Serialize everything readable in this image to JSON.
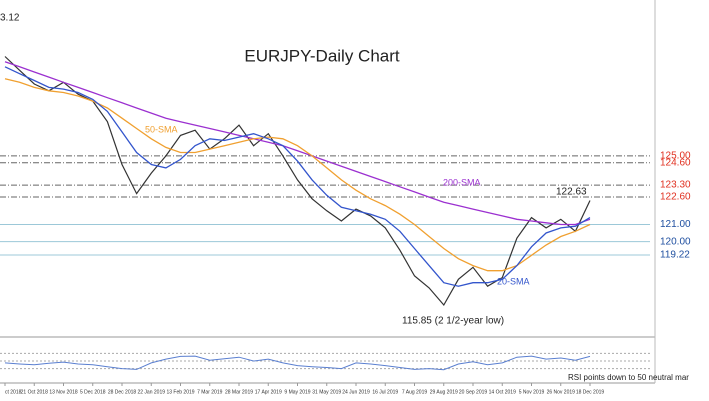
{
  "chart_data": {
    "type": "line",
    "title": "EURJPY-Daily Chart",
    "ylim": [
      114.55,
      134.1
    ],
    "categories": [
      "ct 2018",
      null,
      "21 Oct 2018",
      null,
      "13 Nov 2018",
      null,
      "5 Dec 2018",
      null,
      "28 Dec 2018",
      null,
      "22 Jan 2019",
      null,
      "13 Feb 2019",
      null,
      "7 Mar 2019",
      null,
      "28 Mar 2019",
      null,
      "17 Apr 2019",
      null,
      "9 May 2019",
      null,
      "31 May 2019",
      null,
      "24 Jun 2019",
      null,
      "16 Jul 2019",
      null,
      "7 Aug 2019",
      null,
      "29 Aug 2019",
      null,
      "20 Sep 2019",
      null,
      "14 Oct 2019",
      null,
      "5 Nov 2019",
      null,
      "26 Nov 2019",
      null,
      "18 Dec 2019"
    ],
    "series": [
      {
        "color": "#333333",
        "values": [
          130.8,
          130.0,
          129.2,
          128.8,
          129.3,
          128.6,
          128.2,
          127.0,
          124.5,
          122.8,
          124.0,
          125.0,
          126.2,
          126.5,
          125.4,
          126.0,
          126.8,
          125.6,
          126.3,
          125.0,
          123.6,
          122.5,
          121.8,
          121.2,
          121.9,
          121.5,
          120.8,
          119.5,
          118.0,
          117.3,
          116.3,
          117.8,
          118.5,
          117.4,
          117.9,
          120.2,
          121.4,
          120.8,
          121.3,
          120.6,
          122.4
        ]
      },
      {
        "name": "200-SMA",
        "color": "#9b30d0",
        "values": [
          130.5,
          130.2,
          129.9,
          129.6,
          129.3,
          129.0,
          128.7,
          128.4,
          128.1,
          127.8,
          127.5,
          127.2,
          127.0,
          126.8,
          126.6,
          126.4,
          126.2,
          126.0,
          125.8,
          125.6,
          125.3,
          125.0,
          124.7,
          124.4,
          124.1,
          123.8,
          123.5,
          123.2,
          122.9,
          122.6,
          122.3,
          122.1,
          121.9,
          121.7,
          121.5,
          121.3,
          121.2,
          121.1,
          121.0,
          121.0,
          121.3
        ]
      },
      {
        "name": "50-SMA",
        "color": "#f0a030",
        "values": [
          129.5,
          129.3,
          129.0,
          128.8,
          128.7,
          128.5,
          128.2,
          127.8,
          127.2,
          126.6,
          126.0,
          125.5,
          125.2,
          125.2,
          125.4,
          125.6,
          125.8,
          126.0,
          126.1,
          126.0,
          125.6,
          125.0,
          124.3,
          123.6,
          123.0,
          122.5,
          122.1,
          121.6,
          121.0,
          120.3,
          119.6,
          119.0,
          118.6,
          118.3,
          118.3,
          118.6,
          119.2,
          119.8,
          120.3,
          120.6,
          121.0
        ]
      },
      {
        "name": "20-SMA",
        "color": "#3355cc",
        "values": [
          130.2,
          129.8,
          129.4,
          129.0,
          128.9,
          128.7,
          128.3,
          127.6,
          126.4,
          125.2,
          124.5,
          124.3,
          124.8,
          125.6,
          126.0,
          125.9,
          126.1,
          126.3,
          126.0,
          125.6,
          124.7,
          123.6,
          122.7,
          122.0,
          121.8,
          121.6,
          121.3,
          120.6,
          119.6,
          118.6,
          117.6,
          117.4,
          117.6,
          117.6,
          117.8,
          118.6,
          119.7,
          120.5,
          120.8,
          120.9,
          121.4
        ]
      }
    ],
    "levels": [
      {
        "value": 125,
        "label": "125.00",
        "color": "#e03020"
      },
      {
        "value": 124.6,
        "label": "124.60",
        "color": "#e03020"
      },
      {
        "value": 123.3,
        "label": "123.30",
        "color": "#e03020"
      },
      {
        "value": 122.6,
        "label": "122.60",
        "color": "#e03020"
      },
      {
        "value": 121,
        "label": "121.00",
        "color": "#1f4fa0"
      },
      {
        "value": 120,
        "label": "120.00",
        "color": "#1f4fa0"
      },
      {
        "value": 119.22,
        "label": "119.22",
        "color": "#1f4fa0"
      }
    ],
    "annotations": [
      "3.12",
      "122.63",
      "115.85 (2 1/2-year low)",
      "RSI points down to 50 neutral mar"
    ],
    "rsi": {
      "ylim": [
        0,
        100
      ],
      "levels": [
        30,
        50,
        70
      ],
      "color": "#5a7fd0",
      "values": [
        45,
        42,
        40,
        44,
        47,
        42,
        40,
        35,
        30,
        28,
        45,
        55,
        62,
        63,
        52,
        56,
        60,
        50,
        55,
        45,
        38,
        35,
        33,
        30,
        45,
        42,
        38,
        33,
        28,
        30,
        27,
        42,
        48,
        40,
        45,
        60,
        63,
        55,
        58,
        52,
        62
      ]
    }
  }
}
